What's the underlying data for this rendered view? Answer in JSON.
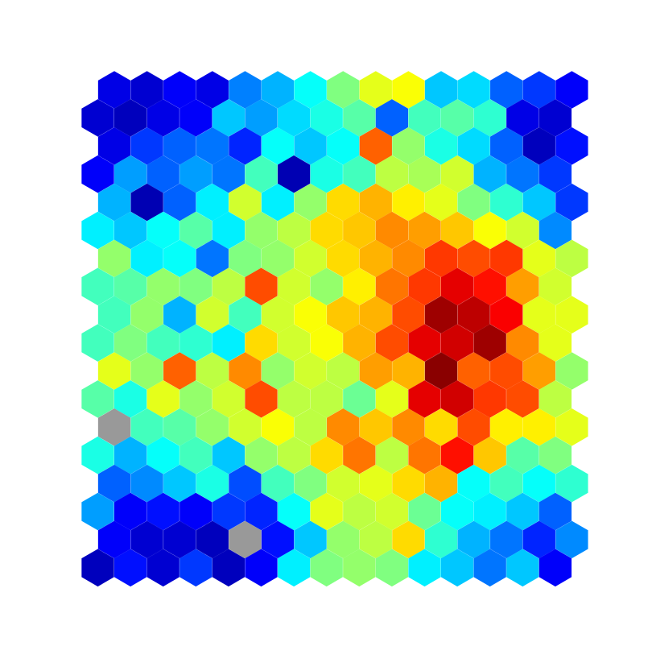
{
  "chart_data": {
    "type": "heatmap",
    "layout": "hexagonal",
    "rows": 18,
    "cols": 15,
    "colormap": "jet",
    "missing_color": "#999999",
    "axes_visible": false,
    "cells": [
      [
        1,
        0.1,
        0.08,
        0.12,
        0.1,
        0.25,
        0.3,
        0.38,
        0.5,
        0.6,
        0.62,
        0.32,
        0.34,
        0.22,
        0.18,
        0.12
      ],
      [
        0,
        0.08,
        0.06,
        0.1,
        0.12,
        0.32,
        0.28,
        0.34,
        0.4,
        0.46,
        0.22,
        0.44,
        0.46,
        0.42,
        0.1,
        0.08
      ],
      [
        1,
        0.1,
        0.18,
        0.22,
        0.24,
        0.16,
        0.38,
        0.32,
        0.38,
        0.78,
        0.52,
        0.4,
        0.34,
        0.22,
        0.06,
        0.14
      ],
      [
        0,
        0.12,
        0.28,
        0.22,
        0.28,
        0.24,
        0.44,
        0.05,
        0.4,
        0.44,
        0.56,
        0.54,
        0.58,
        0.3,
        0.24,
        0.18
      ],
      [
        1,
        0.3,
        0.05,
        0.22,
        0.36,
        0.58,
        0.36,
        0.52,
        0.66,
        0.7,
        0.64,
        0.6,
        0.5,
        0.42,
        0.32,
        0.18
      ],
      [
        0,
        0.36,
        0.32,
        0.38,
        0.46,
        0.36,
        0.52,
        0.56,
        0.66,
        0.68,
        0.74,
        0.72,
        0.68,
        0.62,
        0.58,
        0.26
      ],
      [
        1,
        0.52,
        0.36,
        0.38,
        0.24,
        0.5,
        0.52,
        0.58,
        0.66,
        0.7,
        0.74,
        0.82,
        0.8,
        0.82,
        0.6,
        0.56
      ],
      [
        0,
        0.44,
        0.46,
        0.52,
        0.5,
        0.56,
        0.8,
        0.58,
        0.52,
        0.64,
        0.76,
        0.82,
        0.9,
        0.86,
        0.72,
        0.58
      ],
      [
        1,
        0.44,
        0.52,
        0.3,
        0.58,
        0.44,
        0.58,
        0.62,
        0.68,
        0.7,
        0.8,
        0.97,
        0.94,
        0.88,
        0.6,
        0.6
      ],
      [
        0,
        0.44,
        0.5,
        0.44,
        0.42,
        0.36,
        0.66,
        0.58,
        0.62,
        0.7,
        0.8,
        0.9,
        0.92,
        0.97,
        0.74,
        0.6
      ],
      [
        1,
        0.6,
        0.52,
        0.78,
        0.56,
        0.74,
        0.52,
        0.58,
        0.56,
        0.72,
        0.7,
        0.99,
        0.78,
        0.8,
        0.72,
        0.52
      ],
      [
        0,
        0.46,
        0.4,
        0.6,
        0.52,
        0.58,
        0.8,
        0.56,
        0.56,
        0.48,
        0.6,
        0.9,
        0.92,
        0.82,
        0.8,
        0.56
      ],
      [
        1,
        null,
        0.44,
        0.46,
        0.52,
        0.58,
        0.62,
        0.56,
        0.74,
        0.68,
        0.74,
        0.66,
        0.8,
        0.64,
        0.64,
        0.6
      ],
      [
        0,
        0.4,
        0.3,
        0.38,
        0.44,
        0.32,
        0.52,
        0.56,
        0.66,
        0.76,
        0.56,
        0.76,
        0.86,
        0.68,
        0.46,
        0.5
      ],
      [
        1,
        0.22,
        0.26,
        0.32,
        0.4,
        0.2,
        0.44,
        0.5,
        0.58,
        0.6,
        0.66,
        0.7,
        0.38,
        0.44,
        0.38,
        0.42
      ],
      [
        0,
        0.28,
        0.12,
        0.14,
        0.12,
        0.18,
        0.16,
        0.38,
        0.6,
        0.56,
        0.58,
        0.48,
        0.38,
        0.36,
        0.32,
        0.22
      ],
      [
        1,
        0.12,
        0.08,
        0.08,
        0.06,
        null,
        0.14,
        0.32,
        0.52,
        0.56,
        0.66,
        0.42,
        0.3,
        0.24,
        0.16,
        0.26
      ],
      [
        0,
        0.06,
        0.14,
        0.08,
        0.18,
        0.06,
        0.12,
        0.36,
        0.5,
        0.52,
        0.5,
        0.36,
        0.32,
        0.24,
        0.32,
        0.12
      ]
    ]
  }
}
